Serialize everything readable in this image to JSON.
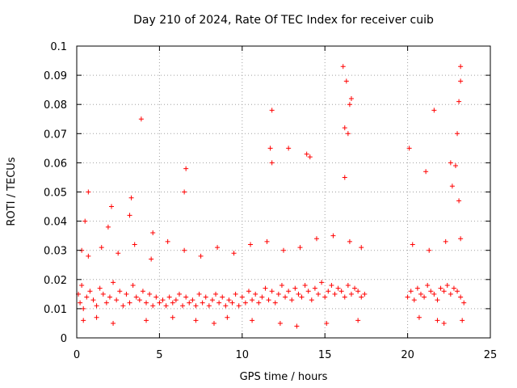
{
  "chart_data": {
    "type": "scatter",
    "title": "Day 210 of 2024, Rate Of TEC Index for receiver cuib",
    "xlabel": "GPS time / hours",
    "ylabel": "ROTI / TECUs",
    "xlim": [
      0,
      25
    ],
    "ylim": [
      0,
      0.1
    ],
    "xticks": [
      "0",
      "5",
      "10",
      "15",
      "20",
      "25"
    ],
    "yticks": [
      "0",
      "0.01",
      "0.02",
      "0.03",
      "0.04",
      "0.05",
      "0.06",
      "0.07",
      "0.08",
      "0.09",
      "0.1"
    ],
    "grid": true,
    "marker": "+",
    "marker_color": "#ff0000",
    "series": [
      {
        "x": [
          0.1,
          0.2,
          0.3,
          0.4,
          0.6,
          0.8,
          1.0,
          1.2,
          1.4,
          1.6,
          1.8,
          2.0,
          2.2,
          2.4,
          2.6,
          2.8,
          3.0,
          3.2,
          3.4,
          3.6,
          3.8,
          4.0,
          4.2,
          4.4,
          4.6,
          4.8,
          5.0,
          5.2,
          5.4,
          5.6,
          5.8,
          6.0,
          6.2,
          6.4,
          6.6,
          6.8,
          7.0,
          7.2,
          7.4,
          7.6,
          7.8,
          8.0,
          8.2,
          8.4,
          8.6,
          8.8,
          9.0,
          9.2,
          9.4,
          9.6,
          9.8,
          10.0,
          10.2,
          10.4,
          10.6,
          10.8,
          11.0,
          11.2,
          11.4,
          11.6,
          11.8,
          12.0,
          12.2,
          12.4,
          12.6,
          12.8,
          13.0,
          13.2,
          13.4,
          13.6,
          13.8,
          14.0,
          14.2,
          14.4,
          14.6,
          14.8,
          15.0,
          15.2,
          15.4,
          15.6,
          15.8,
          16.0,
          16.2,
          16.4,
          16.6,
          16.8,
          17.0,
          17.2,
          17.4,
          20.0,
          20.2,
          20.4,
          20.6,
          20.8,
          21.0,
          21.2,
          21.4,
          21.6,
          21.8,
          22.0,
          22.2,
          22.4,
          22.6,
          22.8,
          23.0,
          23.2,
          23.4,
          0.3,
          0.7,
          1.5,
          2.5,
          3.5,
          4.5,
          5.5,
          6.5,
          7.5,
          8.5,
          9.5,
          10.5,
          11.5,
          12.5,
          13.5,
          14.5,
          15.5,
          16.5,
          17.2,
          20.3,
          21.3,
          22.3,
          23.2,
          0.5,
          2.1,
          3.3,
          6.6,
          11.8,
          14.1,
          16.2,
          22.9,
          0.7,
          1.9,
          3.2,
          4.6,
          6.5,
          11.7,
          13.9,
          16.4,
          21.1,
          22.7,
          23.1,
          3.9,
          11.8,
          12.8,
          16.1,
          16.5,
          20.1,
          21.6,
          22.6,
          23.0,
          23.2,
          16.3,
          23.1,
          16.2,
          16.6,
          23.2,
          0.4,
          1.2,
          2.2,
          4.2,
          5.8,
          7.2,
          8.3,
          9.1,
          10.6,
          12.3,
          13.3,
          15.1,
          17.0,
          20.7,
          21.8,
          22.2,
          23.3
        ],
        "y": [
          0.015,
          0.012,
          0.018,
          0.01,
          0.014,
          0.016,
          0.013,
          0.011,
          0.017,
          0.015,
          0.012,
          0.014,
          0.019,
          0.013,
          0.016,
          0.011,
          0.015,
          0.012,
          0.018,
          0.014,
          0.013,
          0.016,
          0.012,
          0.015,
          0.011,
          0.014,
          0.012,
          0.013,
          0.011,
          0.014,
          0.012,
          0.013,
          0.015,
          0.011,
          0.014,
          0.012,
          0.013,
          0.011,
          0.015,
          0.012,
          0.014,
          0.011,
          0.013,
          0.015,
          0.012,
          0.014,
          0.011,
          0.013,
          0.012,
          0.015,
          0.011,
          0.014,
          0.012,
          0.016,
          0.013,
          0.015,
          0.012,
          0.014,
          0.017,
          0.013,
          0.016,
          0.012,
          0.015,
          0.018,
          0.014,
          0.016,
          0.013,
          0.017,
          0.015,
          0.014,
          0.018,
          0.016,
          0.013,
          0.017,
          0.015,
          0.019,
          0.014,
          0.016,
          0.018,
          0.015,
          0.017,
          0.016,
          0.014,
          0.018,
          0.015,
          0.017,
          0.016,
          0.014,
          0.015,
          0.014,
          0.016,
          0.013,
          0.017,
          0.015,
          0.014,
          0.018,
          0.016,
          0.015,
          0.013,
          0.017,
          0.016,
          0.018,
          0.015,
          0.017,
          0.016,
          0.014,
          0.012,
          0.03,
          0.028,
          0.031,
          0.029,
          0.032,
          0.027,
          0.033,
          0.03,
          0.028,
          0.031,
          0.029,
          0.032,
          0.033,
          0.03,
          0.031,
          0.034,
          0.035,
          0.033,
          0.031,
          0.032,
          0.03,
          0.033,
          0.034,
          0.04,
          0.045,
          0.048,
          0.058,
          0.06,
          0.062,
          0.055,
          0.059,
          0.05,
          0.038,
          0.042,
          0.036,
          0.05,
          0.065,
          0.063,
          0.07,
          0.057,
          0.052,
          0.047,
          0.075,
          0.078,
          0.065,
          0.093,
          0.08,
          0.065,
          0.078,
          0.06,
          0.07,
          0.093,
          0.088,
          0.081,
          0.072,
          0.082,
          0.088,
          0.006,
          0.007,
          0.005,
          0.006,
          0.007,
          0.006,
          0.005,
          0.007,
          0.006,
          0.005,
          0.004,
          0.005,
          0.006,
          0.007,
          0.006,
          0.005,
          0.006
        ]
      }
    ]
  }
}
